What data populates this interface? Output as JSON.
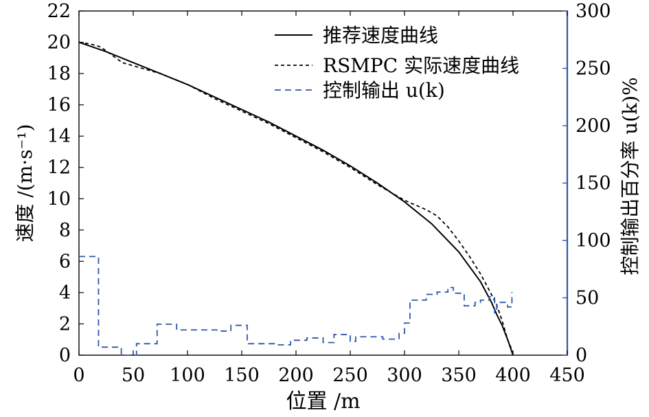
{
  "chart_data": {
    "type": "line",
    "xlabel": "位置 /m",
    "ylabel_left": "速度 /(m·s⁻¹)",
    "ylabel_right": "控制输出百分率 u(k)%",
    "xlim": [
      0,
      450
    ],
    "ylim_left": [
      0,
      22
    ],
    "ylim_right": [
      0,
      300
    ],
    "x_ticks": [
      0,
      50,
      100,
      150,
      200,
      250,
      300,
      350,
      400,
      450
    ],
    "y_left_ticks": [
      0,
      2,
      4,
      6,
      8,
      10,
      12,
      14,
      16,
      18,
      20,
      22
    ],
    "y_right_ticks": [
      0,
      50,
      100,
      150,
      200,
      250,
      300
    ],
    "grid": false,
    "legend_position": "top-right",
    "series": [
      {
        "name": "推荐速度曲线",
        "axis": "left",
        "style": "solid",
        "color": "#000000",
        "x": [
          0,
          25,
          50,
          75,
          100,
          125,
          150,
          175,
          200,
          225,
          250,
          275,
          300,
          325,
          350,
          370,
          380,
          385,
          390,
          395,
          398,
          400
        ],
        "values": [
          20.0,
          19.4,
          18.7,
          18.0,
          17.3,
          16.5,
          15.7,
          14.9,
          14.0,
          13.1,
          12.1,
          11.0,
          9.8,
          8.4,
          6.6,
          4.7,
          3.4,
          2.6,
          1.9,
          1.0,
          0.4,
          0.0
        ]
      },
      {
        "name": "RSMPC 实际速度曲线",
        "axis": "left",
        "style": "dotted",
        "color": "#000000",
        "x": [
          0,
          10,
          20,
          30,
          40,
          50,
          60,
          75,
          100,
          125,
          150,
          175,
          200,
          225,
          250,
          275,
          300,
          310,
          320,
          330,
          340,
          350,
          360,
          370,
          380,
          385,
          390,
          395,
          398,
          400
        ],
        "values": [
          20.0,
          19.9,
          19.7,
          19.2,
          18.7,
          18.5,
          18.3,
          18.0,
          17.3,
          16.4,
          15.6,
          14.8,
          13.9,
          13.0,
          12.0,
          10.9,
          9.9,
          9.6,
          9.3,
          8.9,
          8.2,
          7.3,
          6.3,
          5.2,
          3.9,
          3.2,
          2.2,
          1.0,
          0.5,
          0.0
        ]
      },
      {
        "name": "控制输出 u(k)",
        "axis": "right",
        "style": "dashed",
        "color": "#2e56a6",
        "step": true,
        "x": [
          0,
          14,
          18,
          35,
          39,
          48,
          53,
          65,
          72,
          85,
          90,
          110,
          130,
          140,
          155,
          170,
          180,
          195,
          210,
          215,
          225,
          235,
          245,
          250,
          255,
          265,
          270,
          280,
          290,
          295,
          300,
          305,
          310,
          320,
          330,
          340,
          345,
          355,
          365,
          370,
          378,
          383,
          385,
          395,
          399
        ],
        "values": [
          86,
          86,
          7,
          7,
          0,
          0,
          10,
          10,
          27,
          27,
          22,
          22,
          21,
          26,
          10,
          10,
          9,
          13,
          15,
          15,
          11,
          18,
          18,
          12,
          16,
          16,
          16,
          14,
          14,
          19,
          28,
          48,
          48,
          53,
          55,
          59,
          54,
          43,
          46,
          48,
          51,
          37,
          46,
          42,
          55
        ]
      }
    ]
  }
}
